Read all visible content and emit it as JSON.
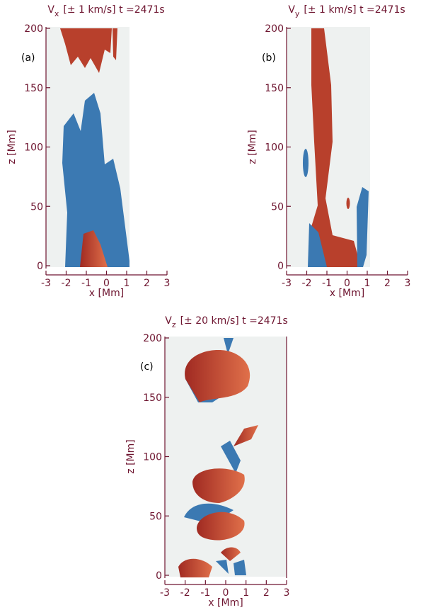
{
  "figure": {
    "panels": [
      {
        "title": {
          "symbol": "V",
          "subscript": "x",
          "rest": "[± 1 km/s]  t =2471s"
        },
        "label": "(a)",
        "xlabel": "x [Mm]",
        "ylabel": "z [Mm]",
        "xlim": [
          -3,
          3
        ],
        "ylim": [
          0,
          200
        ],
        "xticks": [
          -3,
          -2,
          -1,
          0,
          1,
          2,
          3
        ],
        "yticks": [
          0,
          50,
          100,
          150,
          200
        ]
      },
      {
        "title": {
          "symbol": "V",
          "subscript": "y",
          "rest": "[± 1 km/s]  t =2471s"
        },
        "label": "(b)",
        "xlabel": "x [Mm]",
        "ylabel": "z [Mm]",
        "xlim": [
          -3,
          3
        ],
        "ylim": [
          0,
          200
        ],
        "xticks": [
          -3,
          -2,
          -1,
          0,
          1,
          2,
          3
        ],
        "yticks": [
          0,
          50,
          100,
          150,
          200
        ]
      },
      {
        "title": {
          "symbol": "V",
          "subscript": "z",
          "rest": "[± 20 km/s]  t =2471s"
        },
        "label": "(c)",
        "xlabel": "x [Mm]",
        "ylabel": "z [Mm]",
        "xlim": [
          -3,
          3
        ],
        "ylim": [
          0,
          200
        ],
        "xticks": [
          -3,
          -2,
          -1,
          0,
          1,
          2,
          3
        ],
        "yticks": [
          0,
          50,
          100,
          150,
          200
        ]
      }
    ]
  }
}
